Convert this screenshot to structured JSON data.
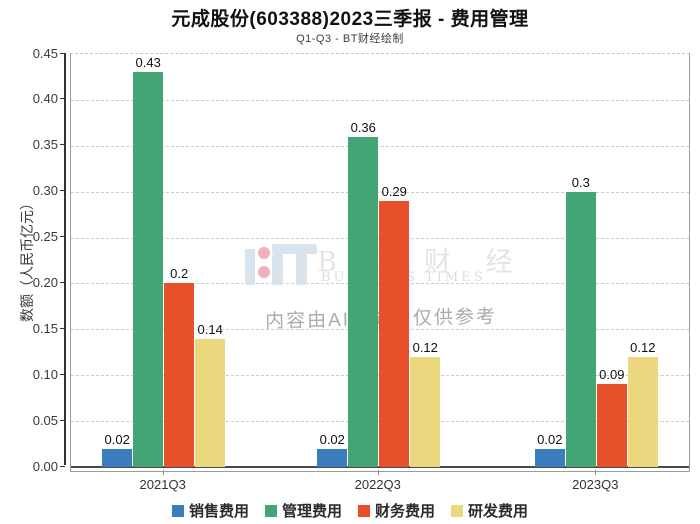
{
  "header": {
    "title": "元成股份(603388)2023三季报 - 费用管理",
    "subtitle": "Q1-Q3 - BT财经绘制"
  },
  "watermark": {
    "logo_name": "bt-business-times-logo",
    "brand_letters": "B T 财 经",
    "brand_sub": "BUSINESS TIMES",
    "notice": "内容由AI生成，仅供参考"
  },
  "chart_data": {
    "type": "bar",
    "title": "元成股份(603388)2023三季报 - 费用管理",
    "subtitle": "Q1-Q3 - BT财经绘制",
    "xlabel": "",
    "ylabel": "数额（人民币亿元）",
    "categories": [
      "2021Q3",
      "2022Q3",
      "2023Q3"
    ],
    "series": [
      {
        "name": "销售费用",
        "color": "#3b7ebf",
        "values": [
          0.02,
          0.02,
          0.02
        ]
      },
      {
        "name": "管理费用",
        "color": "#42a573",
        "values": [
          0.43,
          0.36,
          0.3
        ]
      },
      {
        "name": "财务费用",
        "color": "#e8502c",
        "values": [
          0.2,
          0.29,
          0.09
        ]
      },
      {
        "name": "研发费用",
        "color": "#ebd77e",
        "values": [
          0.14,
          0.12,
          0.12
        ]
      }
    ],
    "value_labels": [
      [
        "0.02",
        "0.43",
        "0.2",
        "0.14"
      ],
      [
        "0.02",
        "0.36",
        "0.29",
        "0.12"
      ],
      [
        "0.02",
        "0.3",
        "0.09",
        "0.12"
      ]
    ],
    "ylim": [
      0,
      0.45
    ],
    "ytick_step": 0.05,
    "ytick_labels": [
      "0.00",
      "0.05",
      "0.10",
      "0.15",
      "0.20",
      "0.25",
      "0.30",
      "0.35",
      "0.40",
      "0.45"
    ],
    "grid": "horizontal-dashed",
    "legend_position": "bottom"
  }
}
